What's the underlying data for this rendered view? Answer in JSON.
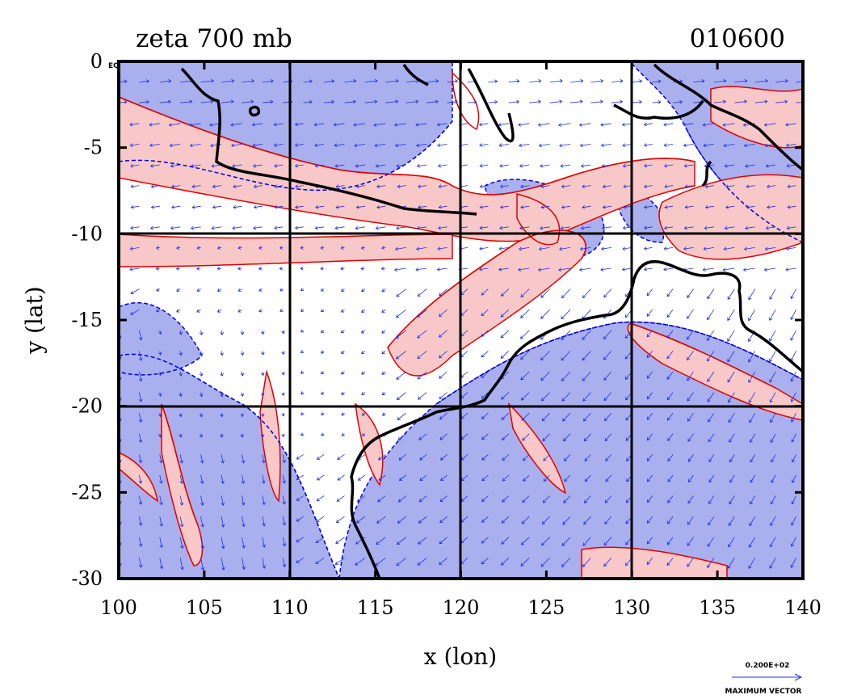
{
  "chart_data": {
    "type": "contour",
    "title": "zeta 700 mb",
    "timestamp": "010600",
    "xlabel": "x (lon)",
    "ylabel": "y (lat)",
    "xlim": [
      100,
      140
    ],
    "ylim": [
      -30,
      0
    ],
    "x_ticks": [
      "100",
      "105",
      "110",
      "115",
      "120",
      "125",
      "130",
      "135",
      "140"
    ],
    "y_ticks": [
      "0",
      "-5",
      "-10",
      "-15",
      "-20",
      "-25",
      "-30"
    ],
    "grid_lines_x": [
      110,
      120,
      130
    ],
    "grid_lines_y": [
      -10,
      -20
    ],
    "corner_label": "EQ",
    "reference_vector": {
      "value_label": "0.200E+02",
      "caption": "MAXIMUM VECTOR"
    },
    "colors": {
      "positive_fill": "#f8c8c8",
      "positive_contour": "#e00000",
      "negative_fill": "#aab0ee",
      "negative_contour": "#0000e0",
      "vector": "#2030e0",
      "coastline": "#000000"
    }
  }
}
